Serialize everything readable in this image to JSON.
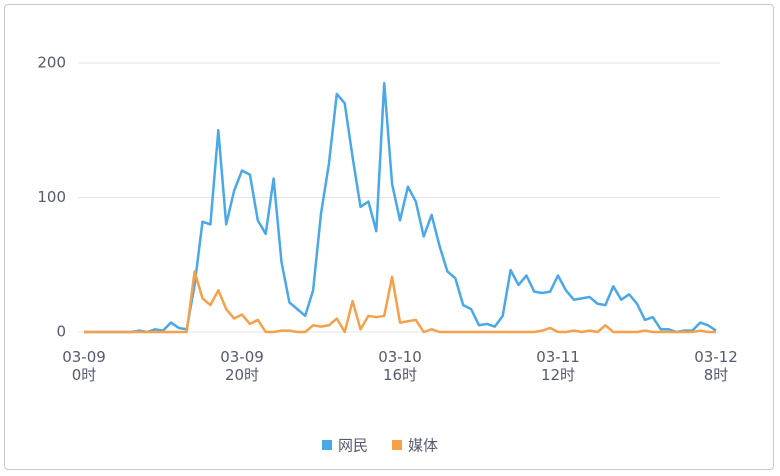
{
  "chart_data": {
    "type": "line",
    "categories": [
      "03-09\n0时",
      null,
      null,
      null,
      null,
      null,
      null,
      null,
      null,
      null,
      null,
      null,
      null,
      null,
      null,
      null,
      null,
      null,
      null,
      null,
      "03-09\n20时",
      null,
      null,
      null,
      null,
      null,
      null,
      null,
      null,
      null,
      null,
      null,
      null,
      null,
      null,
      null,
      null,
      null,
      null,
      null,
      "03-10\n16时",
      null,
      null,
      null,
      null,
      null,
      null,
      null,
      null,
      null,
      null,
      null,
      null,
      null,
      null,
      null,
      null,
      null,
      null,
      null,
      "03-11\n12时",
      null,
      null,
      null,
      null,
      null,
      null,
      null,
      null,
      null,
      null,
      null,
      null,
      null,
      null,
      null,
      null,
      null,
      null,
      null,
      "03-12\n8时"
    ],
    "series": [
      {
        "name": "网民",
        "color": "#4aa8e8",
        "values": [
          0,
          0,
          0,
          0,
          0,
          0,
          0,
          1,
          0,
          2,
          1,
          7,
          3,
          2,
          35,
          82,
          80,
          150,
          80,
          105,
          120,
          117,
          83,
          73,
          114,
          52,
          22,
          17,
          12,
          31,
          88,
          125,
          177,
          170,
          130,
          93,
          97,
          75,
          185,
          110,
          83,
          108,
          97,
          71,
          87,
          64,
          45,
          40,
          20,
          17,
          5,
          6,
          4,
          12,
          46,
          35,
          42,
          30,
          29,
          30,
          42,
          31,
          24,
          25,
          26,
          21,
          20,
          34,
          24,
          28,
          21,
          9,
          11,
          2,
          2,
          0,
          1,
          1,
          7,
          5,
          1
        ]
      },
      {
        "name": "媒体",
        "color": "#f5a04a",
        "values": [
          0,
          0,
          0,
          0,
          0,
          0,
          0,
          0,
          0,
          0,
          0,
          0,
          0,
          0,
          45,
          25,
          20,
          31,
          17,
          10,
          13,
          6,
          9,
          0,
          0,
          1,
          1,
          0,
          0,
          5,
          4,
          5,
          10,
          0,
          23,
          2,
          12,
          11,
          12,
          41,
          7,
          8,
          9,
          0,
          2,
          0,
          0,
          0,
          0,
          0,
          0,
          0,
          0,
          0,
          0,
          0,
          0,
          0,
          1,
          3,
          0,
          0,
          1,
          0,
          1,
          0,
          5,
          0,
          0,
          0,
          0,
          1,
          0,
          0,
          0,
          0,
          0,
          0,
          1,
          0,
          0
        ]
      }
    ],
    "ylim": [
      0,
      200
    ],
    "yticks": [
      0,
      100,
      200
    ],
    "grid": true,
    "legend": "bottom"
  }
}
